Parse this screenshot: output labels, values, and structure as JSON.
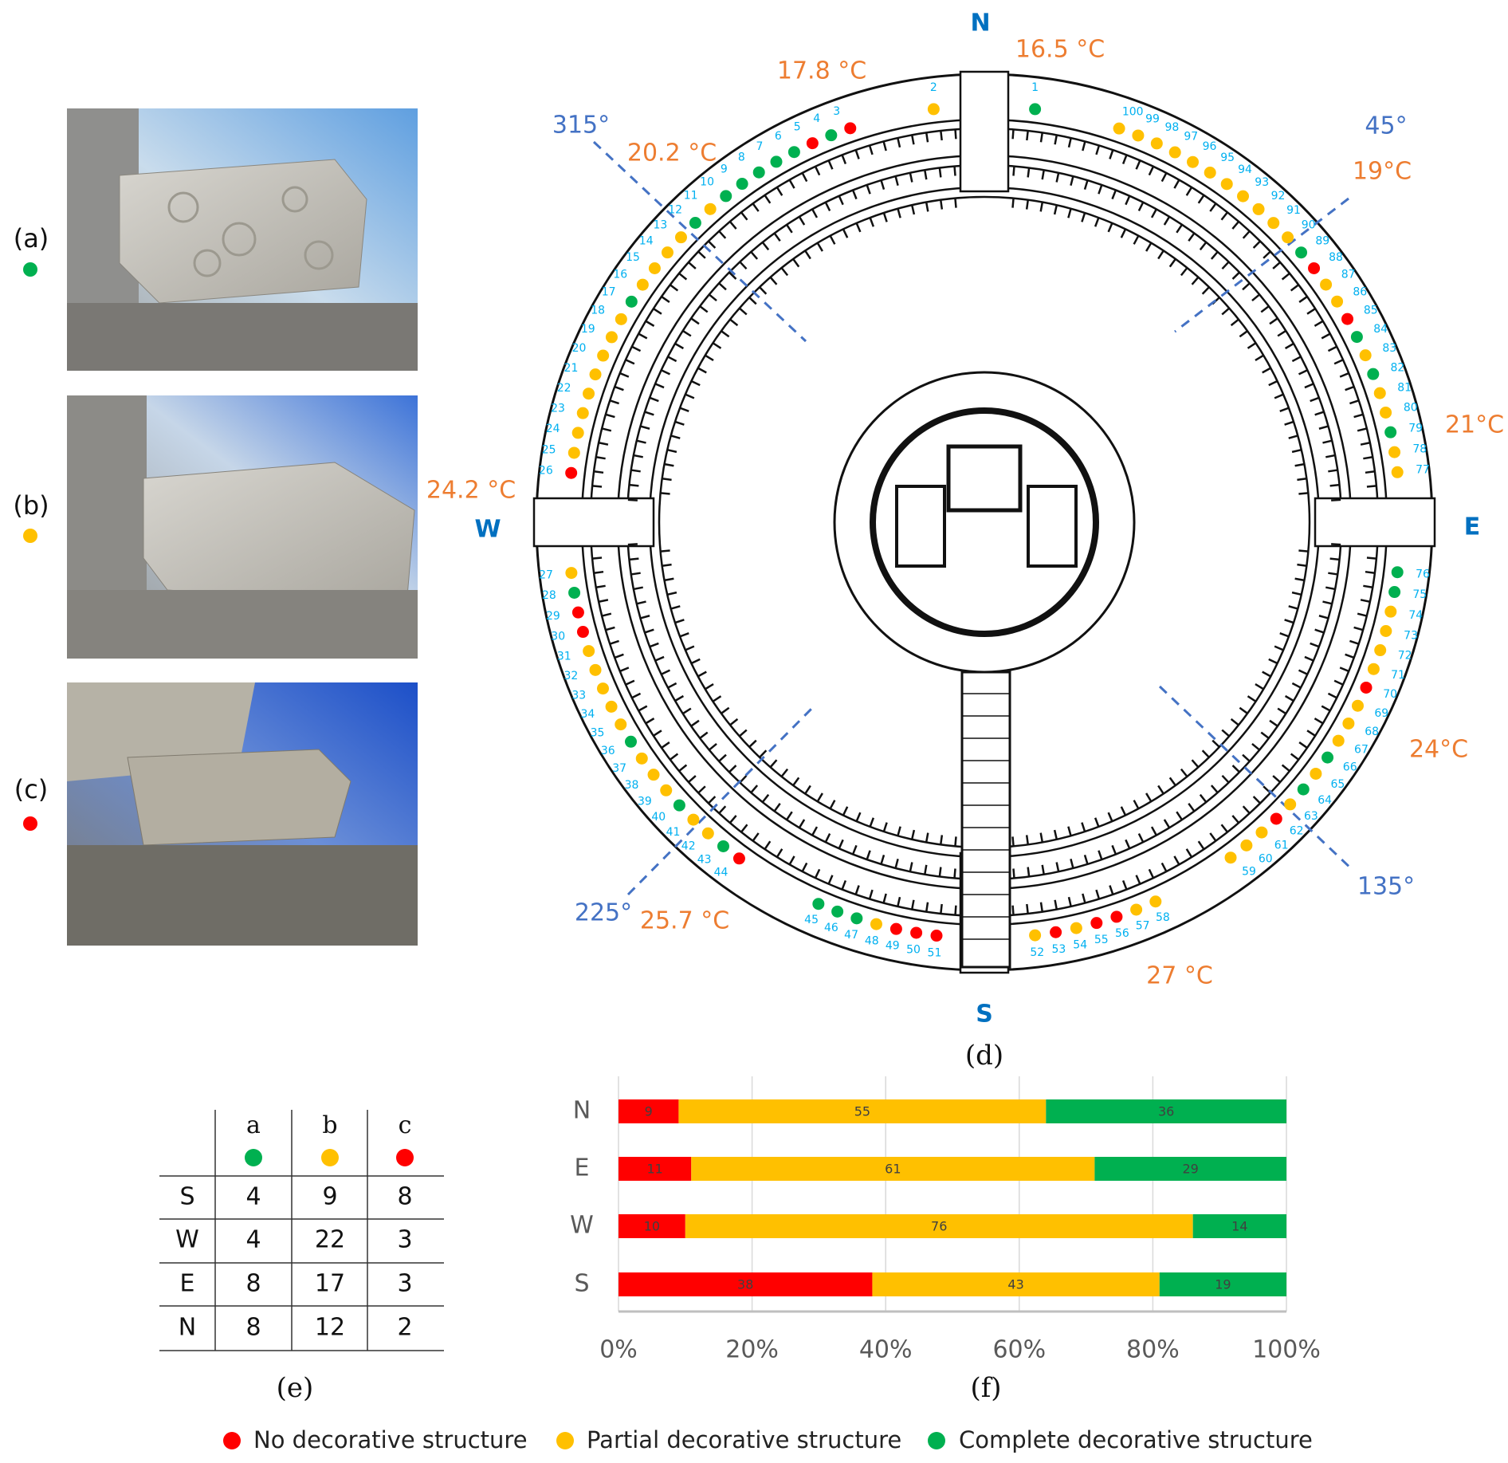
{
  "panels": {
    "a": {
      "label": "(a)",
      "status": "complete"
    },
    "b": {
      "label": "(b)",
      "status": "partial"
    },
    "c": {
      "label": "(c)",
      "status": "none"
    },
    "d": {
      "label": "(d)"
    },
    "e": {
      "label": "(e)"
    },
    "f": {
      "label": "(f)"
    }
  },
  "colors": {
    "none": "#ff0000",
    "partial": "#ffc000",
    "complete": "#00b050",
    "number": "#00b0f0",
    "temperature": "#ed7d31",
    "direction": "#4472c4",
    "compass": "#0070c0"
  },
  "compass": {
    "north": "N",
    "south": "S",
    "east": "E",
    "west": "W"
  },
  "angles": {
    "a315": "315°",
    "a45": "45°",
    "a225": "225°",
    "a135": "135°"
  },
  "temperatures": {
    "n_east": "16.5 °C",
    "n_west": "17.8 °C",
    "nw": "20.2 °C",
    "ne": "19°C",
    "e": "21°C",
    "w": "24.2 °C",
    "se": "24°C",
    "sw": "25.7 °C",
    "s": "27 °C"
  },
  "dots": [
    "complete",
    "partial",
    "none",
    "complete",
    "none",
    "complete",
    "complete",
    "complete",
    "complete",
    "complete",
    "partial",
    "complete",
    "partial",
    "partial",
    "partial",
    "partial",
    "complete",
    "partial",
    "partial",
    "partial",
    "partial",
    "partial",
    "partial",
    "partial",
    "partial",
    "none",
    "partial",
    "complete",
    "none",
    "none",
    "partial",
    "partial",
    "partial",
    "partial",
    "partial",
    "complete",
    "partial",
    "partial",
    "partial",
    "complete",
    "partial",
    "partial",
    "complete",
    "none",
    "complete",
    "complete",
    "complete",
    "partial",
    "none",
    "none",
    "none",
    "partial",
    "none",
    "partial",
    "none",
    "none",
    "partial",
    "partial",
    "partial",
    "partial",
    "partial",
    "none",
    "partial",
    "complete",
    "partial",
    "complete",
    "partial",
    "partial",
    "partial",
    "none",
    "partial",
    "partial",
    "partial",
    "partial",
    "complete",
    "complete",
    "partial",
    "partial",
    "complete",
    "partial",
    "partial",
    "complete",
    "partial",
    "complete",
    "none",
    "partial",
    "partial",
    "none",
    "complete",
    "partial",
    "partial",
    "partial",
    "partial",
    "partial",
    "partial",
    "partial",
    "partial",
    "partial",
    "partial",
    "partial"
  ],
  "table": {
    "columns": [
      {
        "label": "a",
        "status": "complete"
      },
      {
        "label": "b",
        "status": "partial"
      },
      {
        "label": "c",
        "status": "none"
      }
    ],
    "rows": [
      {
        "dir": "S",
        "values": [
          "4",
          "9",
          "8"
        ]
      },
      {
        "dir": "W",
        "values": [
          "4",
          "22",
          "3"
        ]
      },
      {
        "dir": "E",
        "values": [
          "8",
          "17",
          "3"
        ]
      },
      {
        "dir": "N",
        "values": [
          "8",
          "12",
          "2"
        ]
      }
    ]
  },
  "chart_data": {
    "type": "bar",
    "orientation": "horizontal",
    "stacked": "100%",
    "categories": [
      "N",
      "E",
      "W",
      "S"
    ],
    "series": [
      {
        "name": "No decorative structure",
        "color": "#ff0000",
        "values": [
          9,
          11,
          10,
          38
        ]
      },
      {
        "name": "Partial decorative structure",
        "color": "#ffc000",
        "values": [
          55,
          61,
          76,
          43
        ]
      },
      {
        "name": "Complete decorative structure",
        "color": "#00b050",
        "values": [
          36,
          29,
          14,
          19
        ]
      }
    ],
    "xticks": [
      "0%",
      "20%",
      "40%",
      "60%",
      "80%",
      "100%"
    ],
    "xlim": [
      0,
      100
    ],
    "grid": true,
    "legend": "bottom"
  },
  "legend": [
    {
      "label": "No decorative structure",
      "status": "none"
    },
    {
      "label": "Partial decorative structure",
      "status": "partial"
    },
    {
      "label": "Complete decorative structure",
      "status": "complete"
    }
  ]
}
